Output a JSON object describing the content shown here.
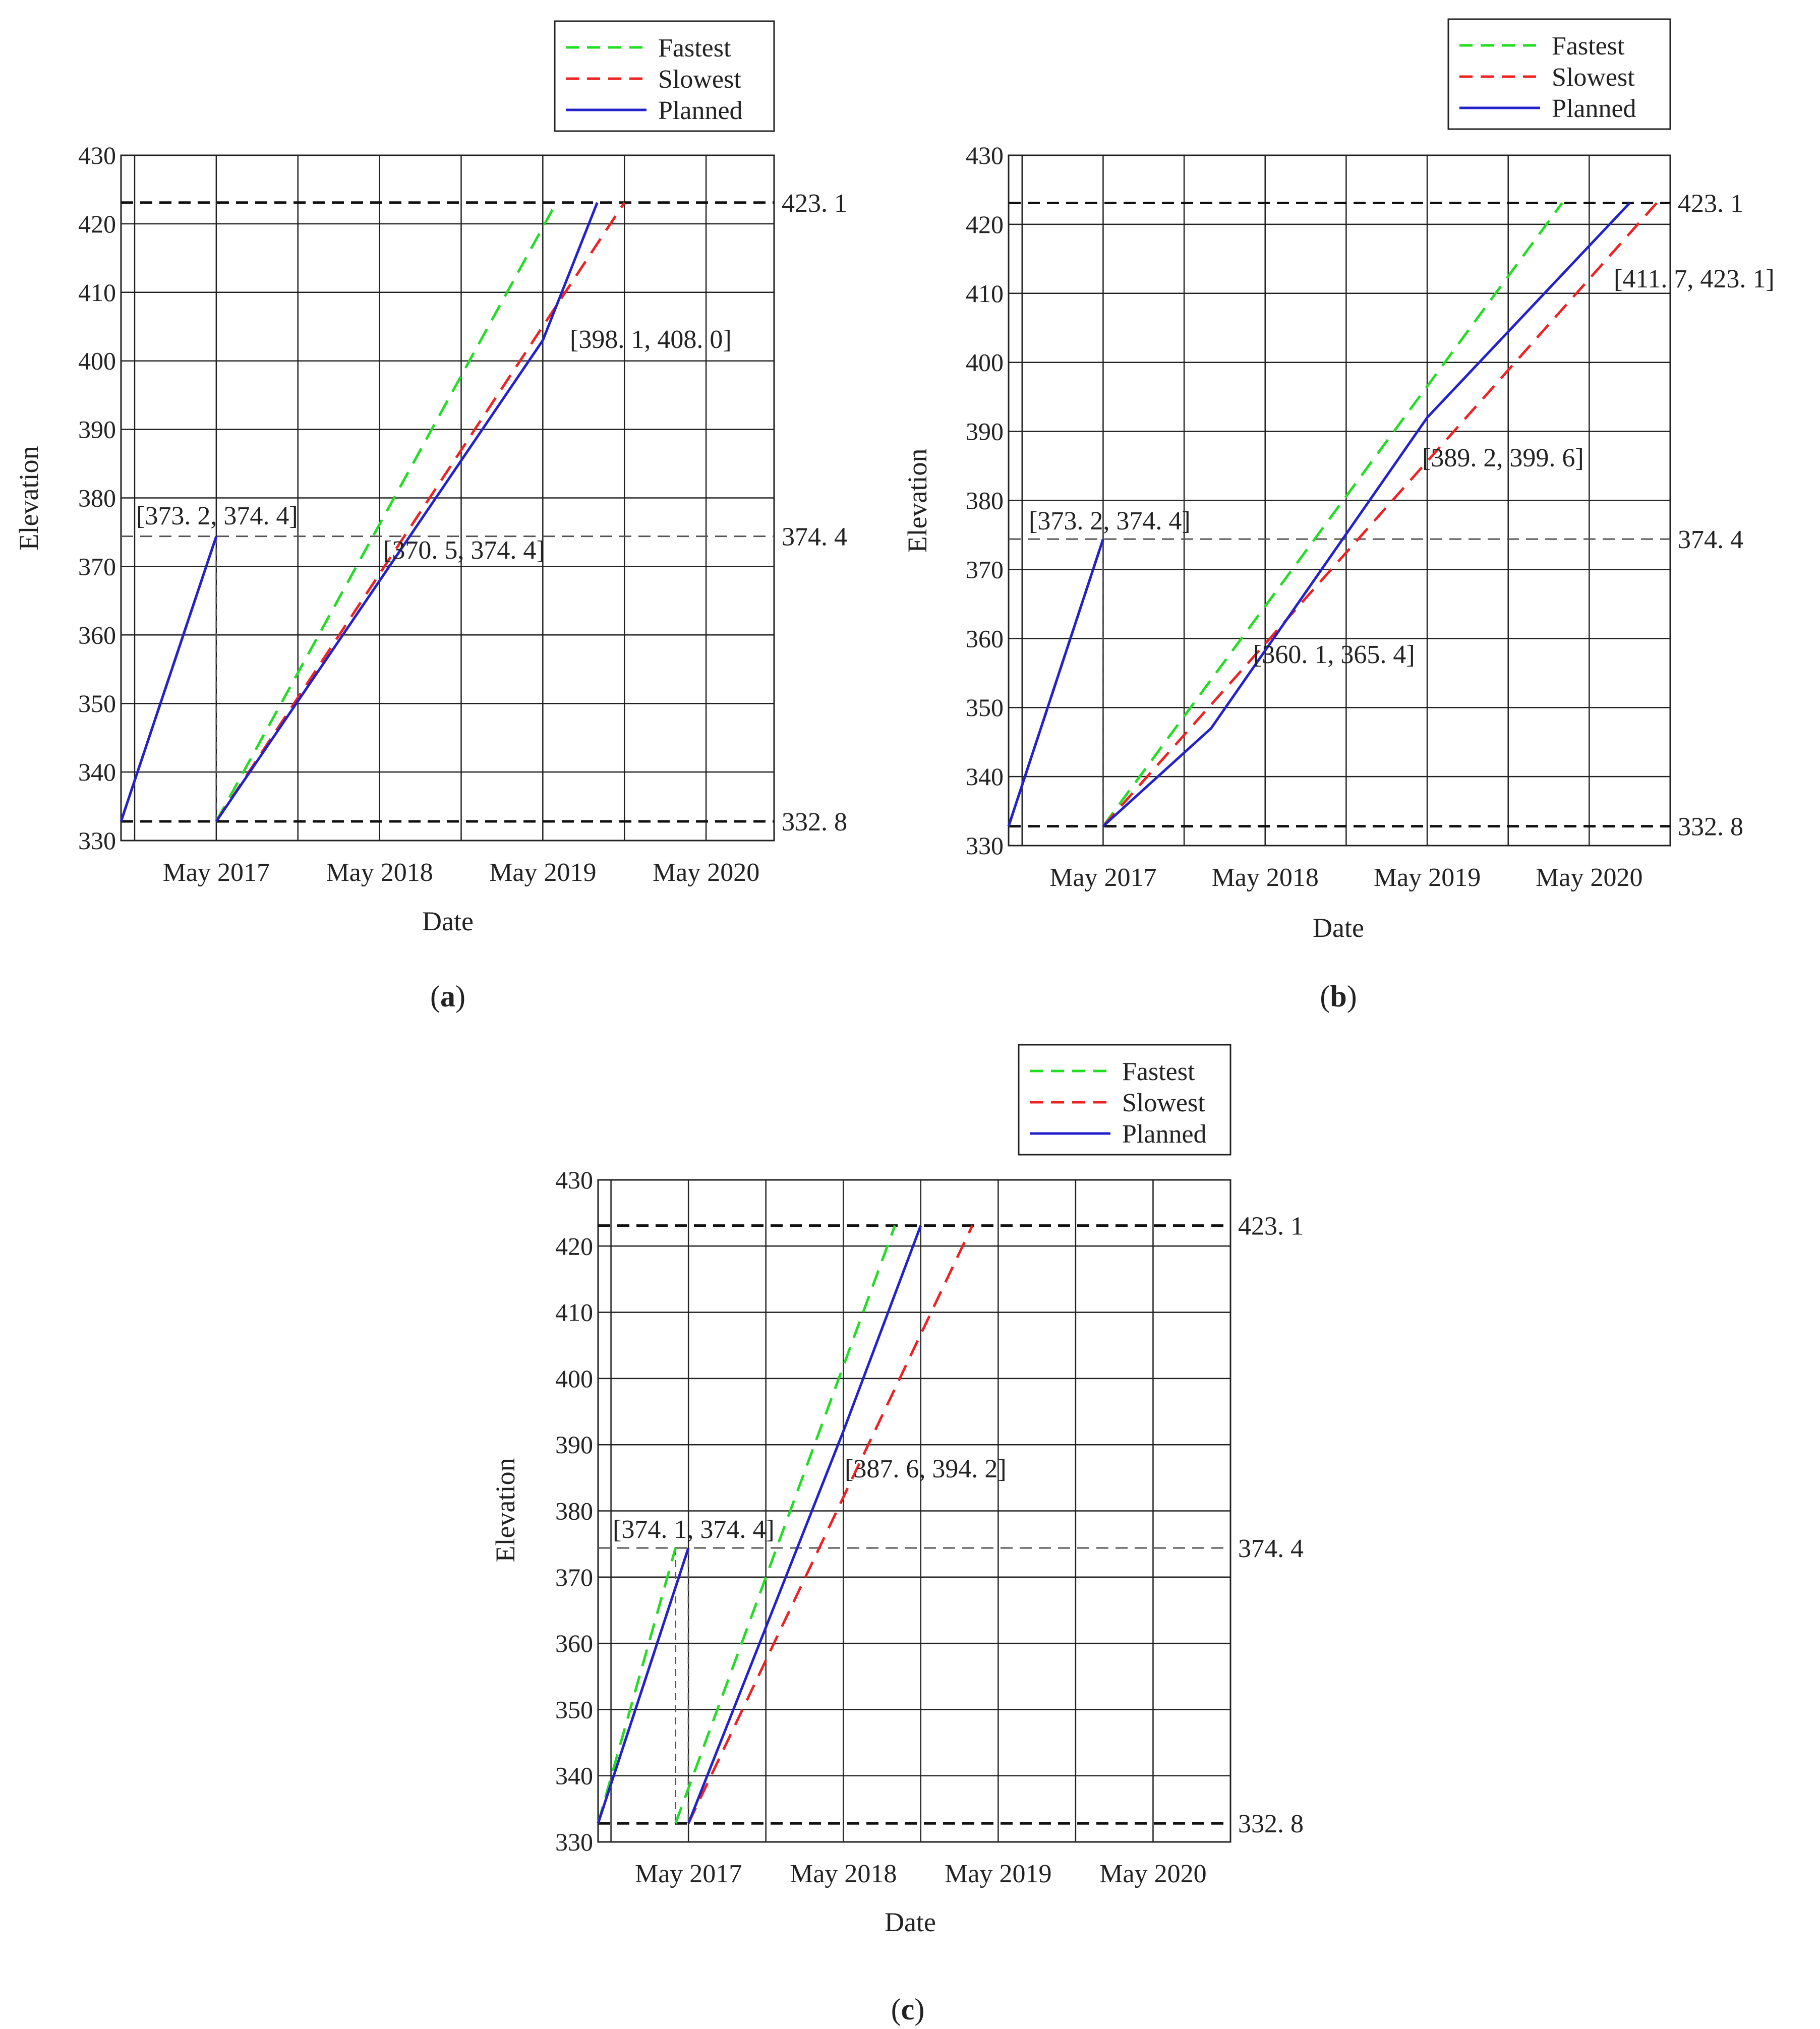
{
  "chart_data": [
    {
      "panel": "a",
      "caption": "(a)",
      "type": "line",
      "xlabel": "Date",
      "ylabel": "Elevation",
      "ylim": [
        330,
        430
      ],
      "yticks": [
        330,
        340,
        350,
        360,
        370,
        380,
        390,
        400,
        410,
        420,
        430
      ],
      "xticks": [
        "May 2017",
        "May 2018",
        "May 2019",
        "May 2020"
      ],
      "legend": [
        "Fastest",
        "Slowest",
        "Planned"
      ],
      "legend_position": "top-right",
      "reference_lines": [
        {
          "value": 423.1,
          "label": "423. 1"
        },
        {
          "value": 374.4,
          "label": "374. 4"
        },
        {
          "value": 332.8,
          "label": "332. 8"
        }
      ],
      "series": [
        {
          "name": "Fastest",
          "color": "#22dd22",
          "style": "dashed",
          "segments": [
            [
              [
                "2016-10",
                332.8
              ],
              [
                "2017-05",
                374.4
              ]
            ],
            [
              [
                "2017-05",
                332.8
              ],
              [
                "2019-06",
                423.1
              ]
            ]
          ]
        },
        {
          "name": "Slowest",
          "color": "#ee2222",
          "style": "dashed",
          "segments": [
            [
              [
                "2016-10",
                332.8
              ],
              [
                "2017-05",
                374.4
              ]
            ],
            [
              [
                "2017-05",
                332.8
              ],
              [
                "2019-11",
                423.1
              ]
            ]
          ]
        },
        {
          "name": "Planned",
          "color": "#2222cc",
          "style": "solid",
          "segments": [
            [
              [
                "2016-10",
                332.8
              ],
              [
                "2017-05",
                374.4
              ]
            ],
            [
              [
                "2017-05",
                332.8
              ],
              [
                "2019-05",
                403
              ],
              [
                "2019-09",
                423.1
              ]
            ]
          ]
        }
      ],
      "annotations": [
        "[373. 2, 374. 4]",
        "[370. 5, 374. 4]",
        "[398. 1, 408. 0]"
      ]
    },
    {
      "panel": "b",
      "caption": "(b)",
      "type": "line",
      "xlabel": "Date",
      "ylabel": "Elevation",
      "ylim": [
        330,
        430
      ],
      "yticks": [
        330,
        340,
        350,
        360,
        370,
        380,
        390,
        400,
        410,
        420,
        430
      ],
      "xticks": [
        "May 2017",
        "May 2018",
        "May 2019",
        "May 2020"
      ],
      "legend": [
        "Fastest",
        "Slowest",
        "Planned"
      ],
      "legend_position": "top-right",
      "reference_lines": [
        {
          "value": 423.1,
          "label": "423. 1"
        },
        {
          "value": 374.4,
          "label": "374. 4"
        },
        {
          "value": 332.8,
          "label": "332. 8"
        }
      ],
      "series": [
        {
          "name": "Fastest",
          "color": "#22dd22",
          "style": "dashed",
          "segments": [
            [
              [
                "2016-10",
                332.8
              ],
              [
                "2017-05",
                374.4
              ]
            ],
            [
              [
                "2017-05",
                332.8
              ],
              [
                "2020-03",
                423.1
              ]
            ]
          ]
        },
        {
          "name": "Slowest",
          "color": "#ee2222",
          "style": "dashed",
          "segments": [
            [
              [
                "2016-10",
                332.8
              ],
              [
                "2017-05",
                374.4
              ]
            ],
            [
              [
                "2017-05",
                332.8
              ],
              [
                "2020-10",
                423.1
              ]
            ]
          ]
        },
        {
          "name": "Planned",
          "color": "#2222cc",
          "style": "solid",
          "segments": [
            [
              [
                "2016-10",
                332.8
              ],
              [
                "2017-05",
                374.4
              ]
            ],
            [
              [
                "2017-05",
                332.8
              ],
              [
                "2018-01",
                347
              ],
              [
                "2019-05",
                392
              ],
              [
                "2020-08",
                423.1
              ]
            ]
          ]
        }
      ],
      "annotations": [
        "[373. 2, 374. 4]",
        "[360. 1, 365. 4]",
        "[389. 2, 399. 6]",
        "[411. 7, 423. 1]"
      ]
    },
    {
      "panel": "c",
      "caption": "(c)",
      "type": "line",
      "xlabel": "Date",
      "ylabel": "Elevation",
      "ylim": [
        330,
        430
      ],
      "yticks": [
        330,
        340,
        350,
        360,
        370,
        380,
        390,
        400,
        410,
        420,
        430
      ],
      "xticks": [
        "May 2017",
        "May 2018",
        "May 2019",
        "May 2020"
      ],
      "legend": [
        "Fastest",
        "Slowest",
        "Planned"
      ],
      "legend_position": "top-right",
      "reference_lines": [
        {
          "value": 423.1,
          "label": "423. 1"
        },
        {
          "value": 374.4,
          "label": "374. 4"
        },
        {
          "value": 332.8,
          "label": "332. 8"
        }
      ],
      "series": [
        {
          "name": "Fastest",
          "color": "#22dd22",
          "style": "dashed",
          "segments": [
            [
              [
                "2016-10",
                332.8
              ],
              [
                "2017-04",
                374.4
              ]
            ],
            [
              [
                "2017-04",
                332.8
              ],
              [
                "2018-09",
                423.1
              ]
            ]
          ]
        },
        {
          "name": "Slowest",
          "color": "#ee2222",
          "style": "dashed",
          "segments": [
            [
              [
                "2016-10",
                332.8
              ],
              [
                "2017-05",
                374.4
              ]
            ],
            [
              [
                "2017-05",
                332.8
              ],
              [
                "2019-03",
                423.1
              ]
            ]
          ]
        },
        {
          "name": "Planned",
          "color": "#2222cc",
          "style": "solid",
          "segments": [
            [
              [
                "2016-10",
                332.8
              ],
              [
                "2017-05",
                374.4
              ]
            ],
            [
              [
                "2017-05",
                332.8
              ],
              [
                "2018-05",
                392
              ],
              [
                "2018-11",
                423.1
              ]
            ]
          ]
        }
      ],
      "annotations": [
        "[374. 1, 374. 4]",
        "[387. 6, 394. 2]"
      ]
    }
  ]
}
